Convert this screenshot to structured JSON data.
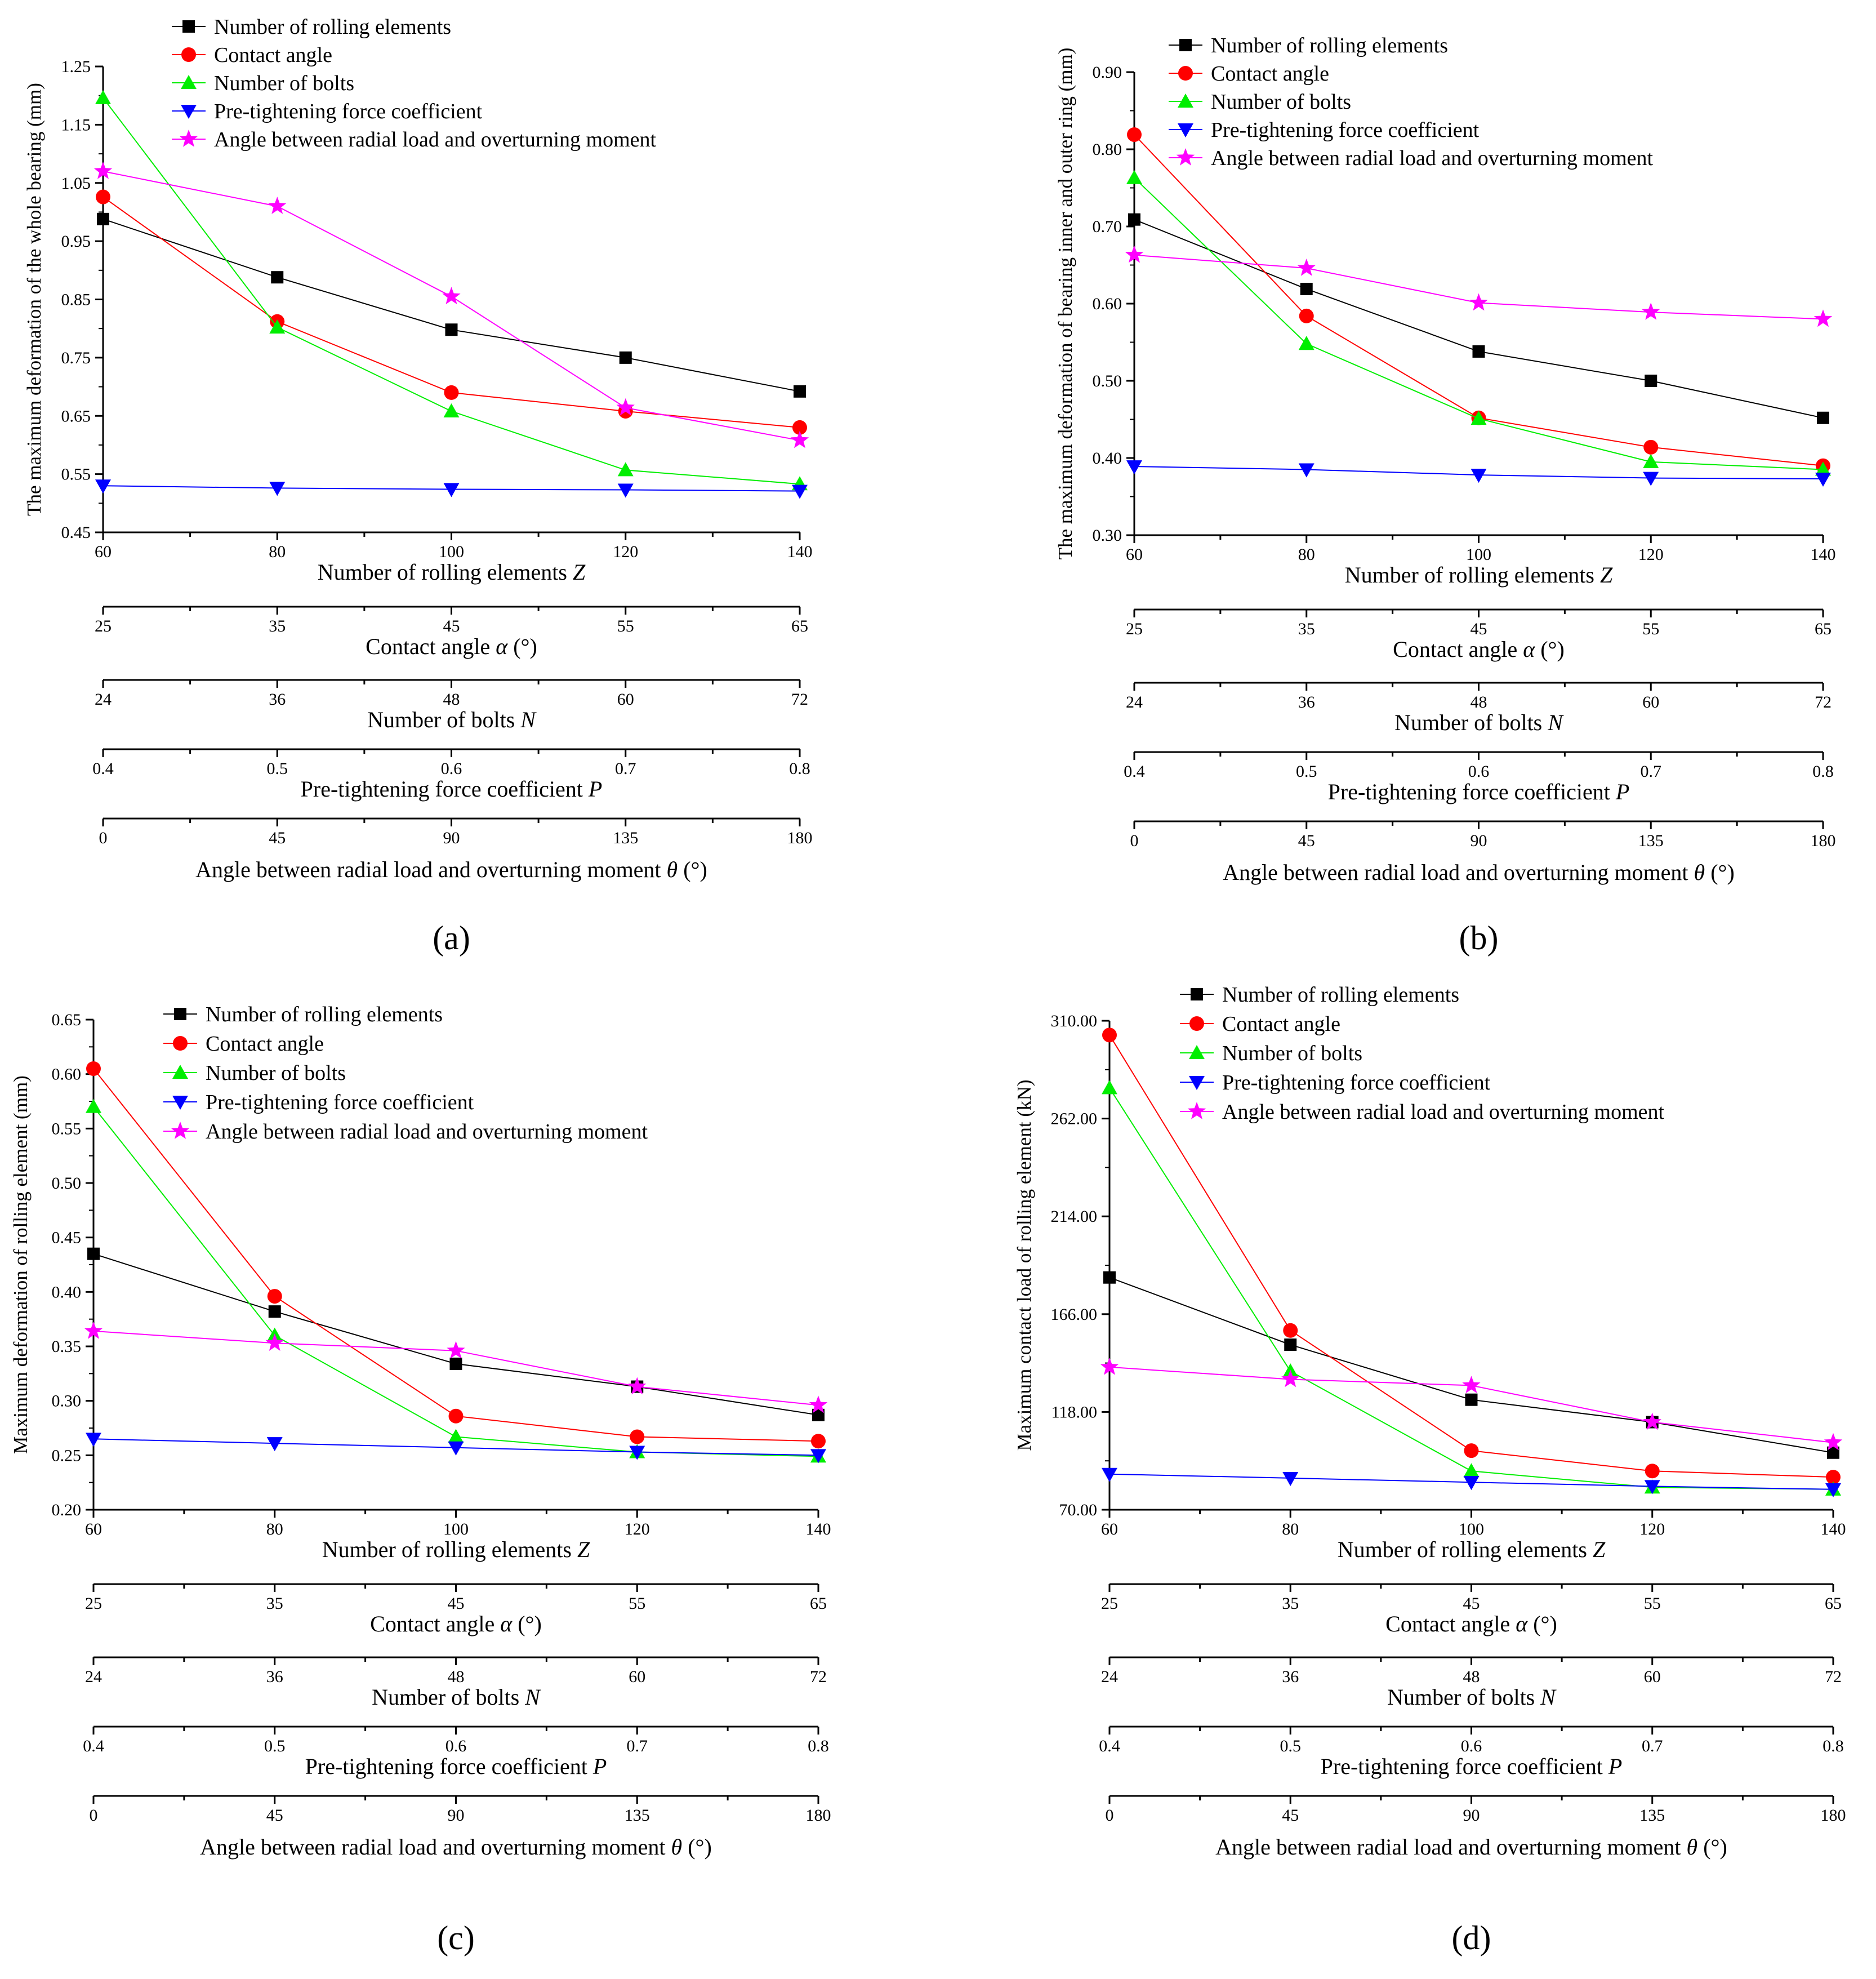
{
  "figure": {
    "panels": [
      "(a)",
      "(b)",
      "(c)",
      "(d)"
    ]
  },
  "series_names": [
    "Number of rolling elements",
    "Contact angle",
    "Number of bolts",
    "Pre-tightening force coefficient",
    "Angle between radial load and overturning moment"
  ],
  "series_colors": [
    "#000000",
    "#ff0000",
    "#00ee00",
    "#0000ff",
    "#ff00ff"
  ],
  "series_markers": [
    "square",
    "circle",
    "triangle-up",
    "triangle-down",
    "star"
  ],
  "axes": [
    {
      "title": "Number of rolling elements",
      "symbol": "Z",
      "ticks": [
        "60",
        "80",
        "100",
        "120",
        "140"
      ]
    },
    {
      "title": "Contact angle",
      "symbol": "α",
      "unit": "(°)",
      "ticks": [
        "25",
        "35",
        "45",
        "55",
        "65"
      ]
    },
    {
      "title": "Number of bolts",
      "symbol": "N",
      "ticks": [
        "24",
        "36",
        "48",
        "60",
        "72"
      ]
    },
    {
      "title": "Pre-tightening force coefficient",
      "symbol": "P",
      "ticks": [
        "0.4",
        "0.5",
        "0.6",
        "0.7",
        "0.8"
      ]
    },
    {
      "title": "Angle between radial load and overturning moment",
      "symbol": "θ",
      "unit": "(°)",
      "ticks": [
        "0",
        "45",
        "90",
        "135",
        "180"
      ]
    }
  ],
  "chart_data": [
    {
      "type": "line",
      "panel": "(a)",
      "ylabel": "The maximum deformation of the whole bearing (mm)",
      "ylim": [
        0.45,
        1.25
      ],
      "yticks": [
        "0.45",
        "0.55",
        "0.65",
        "0.75",
        "0.85",
        "0.95",
        "1.05",
        "1.15",
        "1.25"
      ],
      "legend": "top-left",
      "series": [
        {
          "name": "Number of rolling elements",
          "values": [
            0.988,
            0.888,
            0.798,
            0.75,
            0.692
          ]
        },
        {
          "name": "Contact angle",
          "values": [
            1.026,
            0.812,
            0.69,
            0.658,
            0.63
          ]
        },
        {
          "name": "Number of bolts",
          "values": [
            1.196,
            0.802,
            0.658,
            0.557,
            0.533
          ]
        },
        {
          "name": "Pre-tightening force coefficient",
          "values": [
            0.53,
            0.526,
            0.524,
            0.523,
            0.521
          ]
        },
        {
          "name": "Angle between radial load and overturning moment",
          "values": [
            1.07,
            1.01,
            0.855,
            0.664,
            0.608
          ]
        }
      ]
    },
    {
      "type": "line",
      "panel": "(b)",
      "ylabel": "The maximum deformation of bearing inner and outer ring (mm)",
      "ylim": [
        0.3,
        0.9
      ],
      "yticks": [
        "0.30",
        "0.40",
        "0.50",
        "0.60",
        "0.70",
        "0.80",
        "0.90"
      ],
      "legend": "top-left",
      "series": [
        {
          "name": "Number of rolling elements",
          "values": [
            0.709,
            0.619,
            0.538,
            0.5,
            0.452
          ]
        },
        {
          "name": "Contact angle",
          "values": [
            0.819,
            0.584,
            0.452,
            0.414,
            0.39
          ]
        },
        {
          "name": "Number of bolts",
          "values": [
            0.763,
            0.548,
            0.451,
            0.395,
            0.385
          ]
        },
        {
          "name": "Pre-tightening force coefficient",
          "values": [
            0.389,
            0.385,
            0.378,
            0.374,
            0.373
          ]
        },
        {
          "name": "Angle between radial load and overturning moment",
          "values": [
            0.663,
            0.646,
            0.601,
            0.589,
            0.58
          ]
        }
      ]
    },
    {
      "type": "line",
      "panel": "(c)",
      "ylabel": "Maximum deformation of rolling element (mm)",
      "ylim": [
        0.2,
        0.65
      ],
      "yticks": [
        "0.20",
        "0.25",
        "0.30",
        "0.35",
        "0.40",
        "0.45",
        "0.50",
        "0.55",
        "0.60",
        "0.65"
      ],
      "legend": "top-left",
      "series": [
        {
          "name": "Number of rolling elements",
          "values": [
            0.435,
            0.382,
            0.334,
            0.313,
            0.287
          ]
        },
        {
          "name": "Contact angle",
          "values": [
            0.605,
            0.396,
            0.286,
            0.267,
            0.263
          ]
        },
        {
          "name": "Number of bolts",
          "values": [
            0.57,
            0.36,
            0.267,
            0.253,
            0.249
          ]
        },
        {
          "name": "Pre-tightening force coefficient",
          "values": [
            0.265,
            0.261,
            0.257,
            0.253,
            0.25
          ]
        },
        {
          "name": "Angle between radial load and overturning moment",
          "values": [
            0.364,
            0.353,
            0.346,
            0.313,
            0.296
          ]
        }
      ]
    },
    {
      "type": "line",
      "panel": "(d)",
      "ylabel": "Maximum contact load of rolling element (kN)",
      "ylim": [
        70,
        310
      ],
      "yticks": [
        "70.00",
        "118.00",
        "166.00",
        "214.00",
        "262.00",
        "310.00"
      ],
      "legend": "top-left",
      "series": [
        {
          "name": "Number of rolling elements",
          "values": [
            184.0,
            151.0,
            124.0,
            113.0,
            98.0
          ]
        },
        {
          "name": "Contact angle",
          "values": [
            303.0,
            158.0,
            99.0,
            89.0,
            86.0
          ]
        },
        {
          "name": "Number of bolts",
          "values": [
            277.0,
            138.0,
            89.0,
            81.0,
            80.0
          ]
        },
        {
          "name": "Pre-tightening force coefficient",
          "values": [
            87.5,
            85.5,
            83.5,
            81.5,
            80.0
          ]
        },
        {
          "name": "Angle between radial load and overturning moment",
          "values": [
            140.0,
            134.0,
            131.0,
            113.0,
            103.0
          ]
        }
      ]
    }
  ]
}
